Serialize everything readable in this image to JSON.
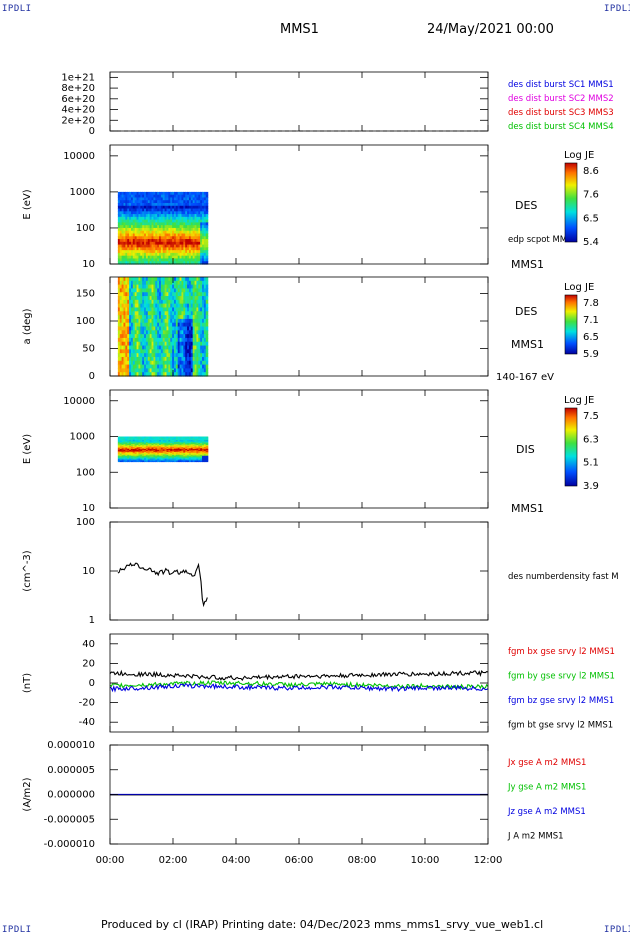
{
  "corner_label": "IPDLI",
  "header": {
    "mission": "MMS1",
    "datetime": "24/May/2021 00:00"
  },
  "footer": {
    "text": "Produced by cl (IRAP)   Printing date: 04/Dec/2023   mms_mms1_srvy_vue_web1.cl"
  },
  "colors": {
    "red": "#e00000",
    "magenta": "#e000e0",
    "green": "#00c000",
    "blue": "#0000e0",
    "black": "#000000"
  },
  "chart_data": [
    {
      "id": "p1",
      "type": "line",
      "ylabel": "",
      "ylim": [
        0,
        1.1e+21
      ],
      "yticks": [
        0,
        2e+20,
        4e+20,
        6e+20,
        8e+20,
        1e+21
      ],
      "ytick_labels": [
        "0",
        "2e+20",
        "4e+20",
        "6e+20",
        "8e+20",
        "1e+21"
      ],
      "dashed_reference_y": 0,
      "series": [
        {
          "name": "des dist burst SC1 MMS1",
          "color": "#0000e0"
        },
        {
          "name": "des dist burst SC2 MMS2",
          "color": "#e000e0"
        },
        {
          "name": "des dist burst SC3 MMS3",
          "color": "#e00000"
        },
        {
          "name": "des dist burst SC4 MMS4",
          "color": "#00c000"
        }
      ]
    },
    {
      "id": "p2",
      "type": "heatmap",
      "ylabel": "E (eV)",
      "yscale": "log",
      "ylim": [
        10,
        20000
      ],
      "yticks": [
        10,
        100,
        1000,
        10000
      ],
      "ytick_labels": [
        "10",
        "100",
        "1000",
        "10000"
      ],
      "x_extent_hours": [
        0.25,
        3.1
      ],
      "side_labels": [
        "DES",
        "edp scpot MMS1",
        "MMS1"
      ],
      "colorbar": {
        "title": "Log JE",
        "ticks": [
          "8.6",
          "7.6",
          "6.5",
          "5.4"
        ]
      }
    },
    {
      "id": "p3",
      "type": "heatmap",
      "ylabel": "a (deg)",
      "ylim": [
        0,
        180
      ],
      "yticks": [
        0,
        50,
        100,
        150
      ],
      "ytick_labels": [
        "0",
        "50",
        "100",
        "150"
      ],
      "x_extent_hours": [
        0.25,
        3.1
      ],
      "side_labels": [
        "DES",
        "MMS1",
        "140-167 eV"
      ],
      "colorbar": {
        "title": "Log JE",
        "ticks": [
          "7.8",
          "7.1",
          "6.5",
          "5.9"
        ]
      }
    },
    {
      "id": "p4",
      "type": "heatmap",
      "ylabel": "E (eV)",
      "yscale": "log",
      "ylim": [
        10,
        20000
      ],
      "yticks": [
        10,
        100,
        1000,
        10000
      ],
      "ytick_labels": [
        "10",
        "100",
        "1000",
        "10000"
      ],
      "x_extent_hours": [
        0.25,
        3.1
      ],
      "side_labels": [
        "DIS",
        "MMS1"
      ],
      "colorbar": {
        "title": "Log JE",
        "ticks": [
          "7.5",
          "6.3",
          "5.1",
          "3.9"
        ]
      }
    },
    {
      "id": "p5",
      "type": "line",
      "ylabel": "(cm^-3)",
      "yscale": "log",
      "ylim": [
        1,
        100
      ],
      "yticks": [
        1,
        10,
        100
      ],
      "ytick_labels": [
        "1",
        "10",
        "100"
      ],
      "series": [
        {
          "name": "des numberdensity fast M",
          "color": "#000000",
          "x": [
            0.25,
            0.5,
            0.75,
            1.0,
            1.25,
            1.5,
            1.75,
            2.0,
            2.25,
            2.5,
            2.7,
            2.8,
            2.85,
            2.9,
            2.95,
            3.0,
            3.05,
            3.1
          ],
          "y": [
            10,
            12,
            14,
            12,
            11,
            9,
            10,
            9,
            10,
            9,
            9,
            13,
            10,
            4,
            2.5,
            1.5,
            2,
            1.8
          ]
        }
      ]
    },
    {
      "id": "p6",
      "type": "line",
      "ylabel": "(nT)",
      "ylim": [
        -50,
        50
      ],
      "yticks": [
        -40,
        -20,
        0,
        20,
        40
      ],
      "ytick_labels": [
        "-40",
        "-20",
        "0",
        "20",
        "40"
      ],
      "series": [
        {
          "name": "fgm bx gse srvy l2 MMS1",
          "color": "#e00000"
        },
        {
          "name": "fgm by gse srvy l2 MMS1",
          "color": "#00c000",
          "x": [
            0,
            1,
            2,
            3,
            4,
            5,
            6,
            7,
            8,
            9,
            10,
            11,
            12
          ],
          "y": [
            -3,
            -2,
            -1,
            0,
            0,
            -1,
            -2,
            -1,
            -2,
            -3,
            -3,
            -4,
            -4
          ]
        },
        {
          "name": "fgm bz gse srvy l2 MMS1",
          "color": "#0000e0",
          "x": [
            0,
            1,
            2,
            3,
            4,
            5,
            6,
            7,
            8,
            9,
            10,
            11,
            12
          ],
          "y": [
            -6,
            -5,
            -3,
            -3,
            -4,
            -5,
            -5,
            -4,
            -5,
            -6,
            -5,
            -5,
            -6
          ]
        },
        {
          "name": "fgm bt gse srvy l2 MMS1",
          "color": "#000000",
          "x": [
            0,
            1,
            2,
            3,
            4,
            5,
            6,
            7,
            8,
            9,
            10,
            11,
            12
          ],
          "y": [
            10,
            9,
            8,
            6,
            5,
            6,
            7,
            7,
            8,
            9,
            9,
            10,
            10
          ]
        }
      ]
    },
    {
      "id": "p7",
      "type": "line",
      "ylabel": "(A/m2)",
      "ylim": [
        -1e-05,
        1e-05
      ],
      "yticks": [
        -1e-05,
        -5e-06,
        0,
        5e-06,
        1e-05
      ],
      "ytick_labels": [
        "-0.000010",
        "-0.000005",
        "0.000000",
        "0.000005",
        "0.000010"
      ],
      "series": [
        {
          "name": "Jx gse A m2 MMS1",
          "color": "#e00000"
        },
        {
          "name": "Jy gse A m2 MMS1",
          "color": "#00c000"
        },
        {
          "name": "Jz gse A m2 MMS1",
          "color": "#0000e0"
        },
        {
          "name": "J A m2 MMS1",
          "color": "#000000"
        }
      ]
    }
  ],
  "x_axis": {
    "range_hours": [
      0,
      12
    ],
    "tick_hours": [
      0,
      2,
      4,
      6,
      8,
      10,
      12
    ],
    "tick_labels": [
      "00:00",
      "02:00",
      "04:00",
      "06:00",
      "08:00",
      "10:00",
      "12:00"
    ]
  }
}
